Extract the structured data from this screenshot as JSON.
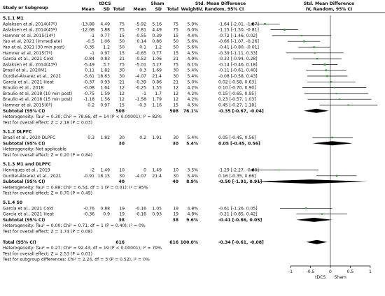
{
  "header": {
    "col_study": "Study or Subgroup",
    "tdcs": "tDCS",
    "sham": "Sham",
    "mean": "Mean",
    "sd": "SD",
    "total": "Total",
    "weight": "Weight",
    "smd_title": "Std. Mean Difference",
    "smd_sub": "IV, Random, 95% CI"
  },
  "colors": {
    "square": "#2ca02c",
    "diamond": "#000000",
    "line": "#000000",
    "subgroup": "#1a1a8c"
  },
  "chart_data": {
    "type": "forest",
    "x_axis": {
      "min": -1,
      "max": 1,
      "ticks": [
        -1,
        -0.5,
        0,
        0.5,
        1
      ],
      "tick_labels": [
        "-1",
        "-0.5",
        "0",
        "0.5",
        "1"
      ],
      "left_label": "tDCS",
      "right_label": "Sham"
    },
    "groups": [
      {
        "title": "5.1.1 M1",
        "studies": [
          {
            "name": "Aslaksen et al, 2014(47º)",
            "t_mean": "-13.88",
            "t_sd": "4.49",
            "t_n": "75",
            "s_mean": "-5.92",
            "s_sd": "5.16",
            "s_n": "75",
            "weight": "5.9%",
            "ci": "-1.64 [-2.01, -1.27]",
            "smd": -1.64,
            "lo": -2.01,
            "hi": -1.27
          },
          {
            "name": "Aslaksen et al, 2014(45º)",
            "t_mean": "-12.68",
            "t_sd": "3.88",
            "t_n": "75",
            "s_mean": "-7.81",
            "s_sd": "4.49",
            "s_n": "75",
            "weight": "6.0%",
            "ci": "-1.15 [-1.50, -0.81]",
            "smd": -1.15,
            "lo": -1.5,
            "hi": -0.81
          },
          {
            "name": "Hamner et al, 2015(14º)",
            "t_mean": "-1",
            "t_sd": "0.77",
            "t_n": "15",
            "s_mean": "-0.55",
            "s_sd": "0.39",
            "s_n": "15",
            "weight": "4.4%",
            "ci": "-0.72 [-1.46, 0.02]",
            "smd": -0.72,
            "lo": -1.46,
            "hi": 0.02
          },
          {
            "name": "Yao et al, 2021 (immediate)",
            "t_mean": "-0.5",
            "t_sd": "1.06",
            "t_n": "50",
            "s_mean": "0.14",
            "s_sd": "0.86",
            "s_n": "50",
            "weight": "5.6%",
            "ci": "-0.66 [-1.07, -0.26]",
            "smd": -0.66,
            "lo": -1.07,
            "hi": -0.26
          },
          {
            "name": "Yao et al, 2021 (30 min post)",
            "t_mean": "-0.35",
            "t_sd": "1.2",
            "t_n": "50",
            "s_mean": "0.1",
            "s_sd": "1.2",
            "s_n": "50",
            "weight": "5.6%",
            "ci": "-0.41 [-0.80, -0.01]",
            "smd": -0.41,
            "lo": -0.8,
            "hi": -0.01
          },
          {
            "name": "Hamner et al, 2015(7º)",
            "t_mean": "-1",
            "t_sd": "0.97",
            "t_n": "15",
            "s_mean": "-0.65",
            "s_sd": "0.77",
            "s_n": "15",
            "weight": "4.5%",
            "ci": "-0.39 [-1.11, 0.33]",
            "smd": -0.39,
            "lo": -1.11,
            "hi": 0.33
          },
          {
            "name": "García et al., 2021 Cold",
            "t_mean": "-0.84",
            "t_sd": "0.83",
            "t_n": "21",
            "s_mean": "-0.52",
            "s_sd": "1.06",
            "s_n": "21",
            "weight": "4.9%",
            "ci": "-0.33 [-0.94, 0.28]",
            "smd": -0.33,
            "lo": -0.94,
            "hi": 0.28
          },
          {
            "name": "Aslaksen et al, 2014(43º)",
            "t_mean": "-5.49",
            "t_sd": "3.7",
            "t_n": "75",
            "s_mean": "-5.01",
            "s_sd": "3.27",
            "s_n": "75",
            "weight": "6.1%",
            "ci": "-0.14 [-0.46, 0.18]",
            "smd": -0.14,
            "lo": -0.46,
            "hi": 0.18
          },
          {
            "name": "Brasil et al., 2020M1",
            "t_mean": "0.11",
            "t_sd": "1.82",
            "t_n": "30",
            "s_mean": "0.3",
            "s_sd": "1.69",
            "s_n": "30",
            "weight": "5.4%",
            "ci": "-0.11 [-0.61, 0.40]",
            "smd": -0.11,
            "lo": -0.61,
            "hi": 0.4
          },
          {
            "name": "Gurdiel-Álvarez et al., 2021",
            "t_mean": "-5.61",
            "t_sd": "18.63",
            "t_n": "30",
            "s_mean": "-4.07",
            "s_sd": "21.4",
            "s_n": "30",
            "weight": "5.4%",
            "ci": "-0.08 [-0.58, 0.43]",
            "smd": -0.08,
            "lo": -0.58,
            "hi": 0.43
          },
          {
            "name": "García et al., 2021 Heat",
            "t_mean": "-0.37",
            "t_sd": "0.93",
            "t_n": "21",
            "s_mean": "-0.39",
            "s_sd": "0.86",
            "s_n": "21",
            "weight": "5.0%",
            "ci": "0.02 [-0.58, 0.63]",
            "smd": 0.02,
            "lo": -0.58,
            "hi": 0.63
          },
          {
            "name": "Braulio et al., 2018",
            "t_mean": "-0.08",
            "t_sd": "1.64",
            "t_n": "12",
            "s_mean": "-0.25",
            "s_sd": "1.55",
            "s_n": "12",
            "weight": "4.2%",
            "ci": "0.10 [-0.70, 0.90]",
            "smd": 0.1,
            "lo": -0.7,
            "hi": 0.9
          },
          {
            "name": "Braulio et al, 2018 (10 min post)",
            "t_mean": "-0.75",
            "t_sd": "1.59",
            "t_n": "12",
            "s_mean": "-1",
            "s_sd": "1.7",
            "s_n": "12",
            "weight": "4.2%",
            "ci": "0.15 [-0.65, 0.95]",
            "smd": 0.15,
            "lo": -0.65,
            "hi": 0.95
          },
          {
            "name": "Braulio et al, 2018 (15 min post)",
            "t_mean": "-1.18",
            "t_sd": "1.56",
            "t_n": "12",
            "s_mean": "-1.58",
            "s_sd": "1.79",
            "s_n": "12",
            "weight": "4.2%",
            "ci": "0.23 [-0.57, 1.03]",
            "smd": 0.23,
            "lo": -0.57,
            "hi": 1.03
          },
          {
            "name": "Hamner et al, 2015(0º)",
            "t_mean": "0.2",
            "t_sd": "0.97",
            "t_n": "15",
            "s_mean": "-0.3",
            "s_sd": "1.16",
            "s_n": "15",
            "weight": "4.5%",
            "ci": "0.45 [-0.27, 1.18]",
            "smd": 0.45,
            "lo": -0.27,
            "hi": 1.18
          }
        ],
        "subtotal": {
          "label": "Subtotal (95% CI)",
          "t_n": "508",
          "s_n": "508",
          "weight": "76.1%",
          "ci": "-0.35 [-0.67, -0.04]",
          "smd": -0.35,
          "lo": -0.67,
          "hi": -0.04
        },
        "notes": [
          "Heterogeneity: Tau² = 0.30; Chi² = 78.66, df = 14 (P < 0.00001); I² = 82%",
          "Test for overall effect: Z = 2.18 (P = 0.03)"
        ]
      },
      {
        "title": "5.1.2 DLPFC",
        "studies": [
          {
            "name": "Brasil et al., 2020 DLPFC",
            "t_mean": "0.3",
            "t_sd": "1.82",
            "t_n": "30",
            "s_mean": "0.2",
            "s_sd": "1.91",
            "s_n": "30",
            "weight": "5.4%",
            "ci": "0.05 [-0.45, 0.56]",
            "smd": 0.05,
            "lo": -0.45,
            "hi": 0.56
          }
        ],
        "subtotal": {
          "label": "Subtotal (95% CI)",
          "t_n": "30",
          "s_n": "30",
          "weight": "5.4%",
          "ci": "0.05 [-0.45, 0.56]",
          "smd": 0.05,
          "lo": -0.45,
          "hi": 0.56
        },
        "notes": [
          "Heterogeneity: Not applicable",
          "Test for overall effect: Z = 0.20 (P = 0.84)"
        ]
      },
      {
        "title": "5.1.3 M1 and DLPFC",
        "studies": [
          {
            "name": "Henriques et al., 2019",
            "t_mean": "-2",
            "t_sd": "1.49",
            "t_n": "10",
            "s_mean": "0",
            "s_sd": "1.49",
            "s_n": "10",
            "weight": "3.5%",
            "ci": "-1.29 [-2.27, -0.30]",
            "smd": -1.29,
            "lo": -2.27,
            "hi": -0.3
          },
          {
            "name": "Gurdiel-Álvarez et al., 2021",
            "t_mean": "-0.91",
            "t_sd": "18.15",
            "t_n": "30",
            "s_mean": "-4.07",
            "s_sd": "21.4",
            "s_n": "30",
            "weight": "5.4%",
            "ci": "0.16 [-0.35, 0.66]",
            "smd": 0.16,
            "lo": -0.35,
            "hi": 0.66
          }
        ],
        "subtotal": {
          "label": "Subtotal (95% CI)",
          "t_n": "40",
          "s_n": "40",
          "weight": "8.9%",
          "ci": "-0.50 [-1.91, 0.91]",
          "smd": -0.5,
          "lo": -1.91,
          "hi": 0.91
        },
        "notes": [
          "Heterogeneity: Tau² = 0.88; Chi² = 6.54, df = 1 (P = 0.01); I² = 85%",
          "Test for overall effect: Z = 0.70 (P = 0.49)"
        ]
      },
      {
        "title": "5.1.4 S0",
        "studies": [
          {
            "name": "García et al., 2021 Cold",
            "t_mean": "-0.76",
            "t_sd": "0.88",
            "t_n": "19",
            "s_mean": "-0.16",
            "s_sd": "1.05",
            "s_n": "19",
            "weight": "4.8%",
            "ci": "-0.61 [-1.26, 0.05]",
            "smd": -0.61,
            "lo": -1.26,
            "hi": 0.05
          },
          {
            "name": "García et al., 2021 Heat",
            "t_mean": "-0.36",
            "t_sd": "0.9",
            "t_n": "19",
            "s_mean": "-0.16",
            "s_sd": "0.93",
            "s_n": "19",
            "weight": "4.8%",
            "ci": "-0.21 [-0.85, 0.42]",
            "smd": -0.21,
            "lo": -0.85,
            "hi": 0.42
          }
        ],
        "subtotal": {
          "label": "Subtotal (95% CI)",
          "t_n": "38",
          "s_n": "38",
          "weight": "9.6%",
          "ci": "-0.41 [-0.86, 0.05]",
          "smd": -0.41,
          "lo": -0.86,
          "hi": 0.05
        },
        "notes": [
          "Heterogeneity: Tau² = 0.00; Chi² = 0.71, df = 1 (P = 0.40); I² = 0%",
          "Test for overall effect: Z = 1.74 (P = 0.08)"
        ]
      }
    ],
    "total": {
      "label": "Total (95% CI)",
      "t_n": "616",
      "s_n": "616",
      "weight": "100.0%",
      "ci": "-0.34 [-0.61, -0.08]",
      "smd": -0.34,
      "lo": -0.61,
      "hi": -0.08
    },
    "total_notes": [
      "Heterogeneity: Tau² = 0.27; Chi² = 92.43, df = 19 (P < 0.00001); I² = 79%",
      "Test for overall effect: Z = 2.53 (P = 0.01)",
      "Test for subgroup differences: Chi² = 2.24, df = 3 (P = 0.52), I² = 0%"
    ]
  }
}
